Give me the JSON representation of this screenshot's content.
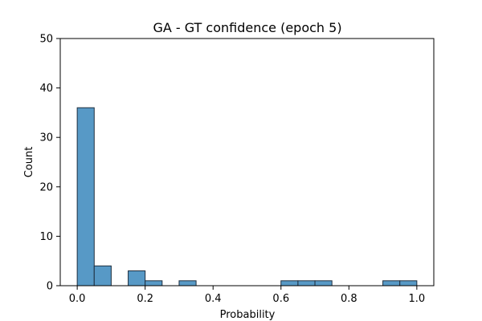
{
  "chart_data": {
    "type": "bar",
    "title": "GA - GT confidence (epoch 5)",
    "xlabel": "Probability",
    "ylabel": "Count",
    "xlim": [
      -0.05,
      1.05
    ],
    "ylim": [
      0,
      50
    ],
    "xticks": [
      "0.0",
      "0.2",
      "0.4",
      "0.6",
      "0.8",
      "1.0"
    ],
    "xtick_values": [
      0.0,
      0.2,
      0.4,
      0.6,
      0.8,
      1.0
    ],
    "yticks": [
      "0",
      "10",
      "20",
      "30",
      "40",
      "50"
    ],
    "ytick_values": [
      0,
      10,
      20,
      30,
      40,
      50
    ],
    "bins": [
      0.0,
      0.05,
      0.1,
      0.15,
      0.2,
      0.25,
      0.3,
      0.35,
      0.4,
      0.45,
      0.5,
      0.55,
      0.6,
      0.65,
      0.7,
      0.75,
      0.8,
      0.85,
      0.9,
      0.95,
      1.0
    ],
    "counts": [
      36,
      4,
      0,
      3,
      1,
      0,
      1,
      0,
      0,
      0,
      0,
      0,
      1,
      1,
      1,
      0,
      0,
      0,
      1,
      1
    ],
    "bar_color": "#5799c6",
    "edge_color": "#1f2f3f",
    "grid": false
  }
}
